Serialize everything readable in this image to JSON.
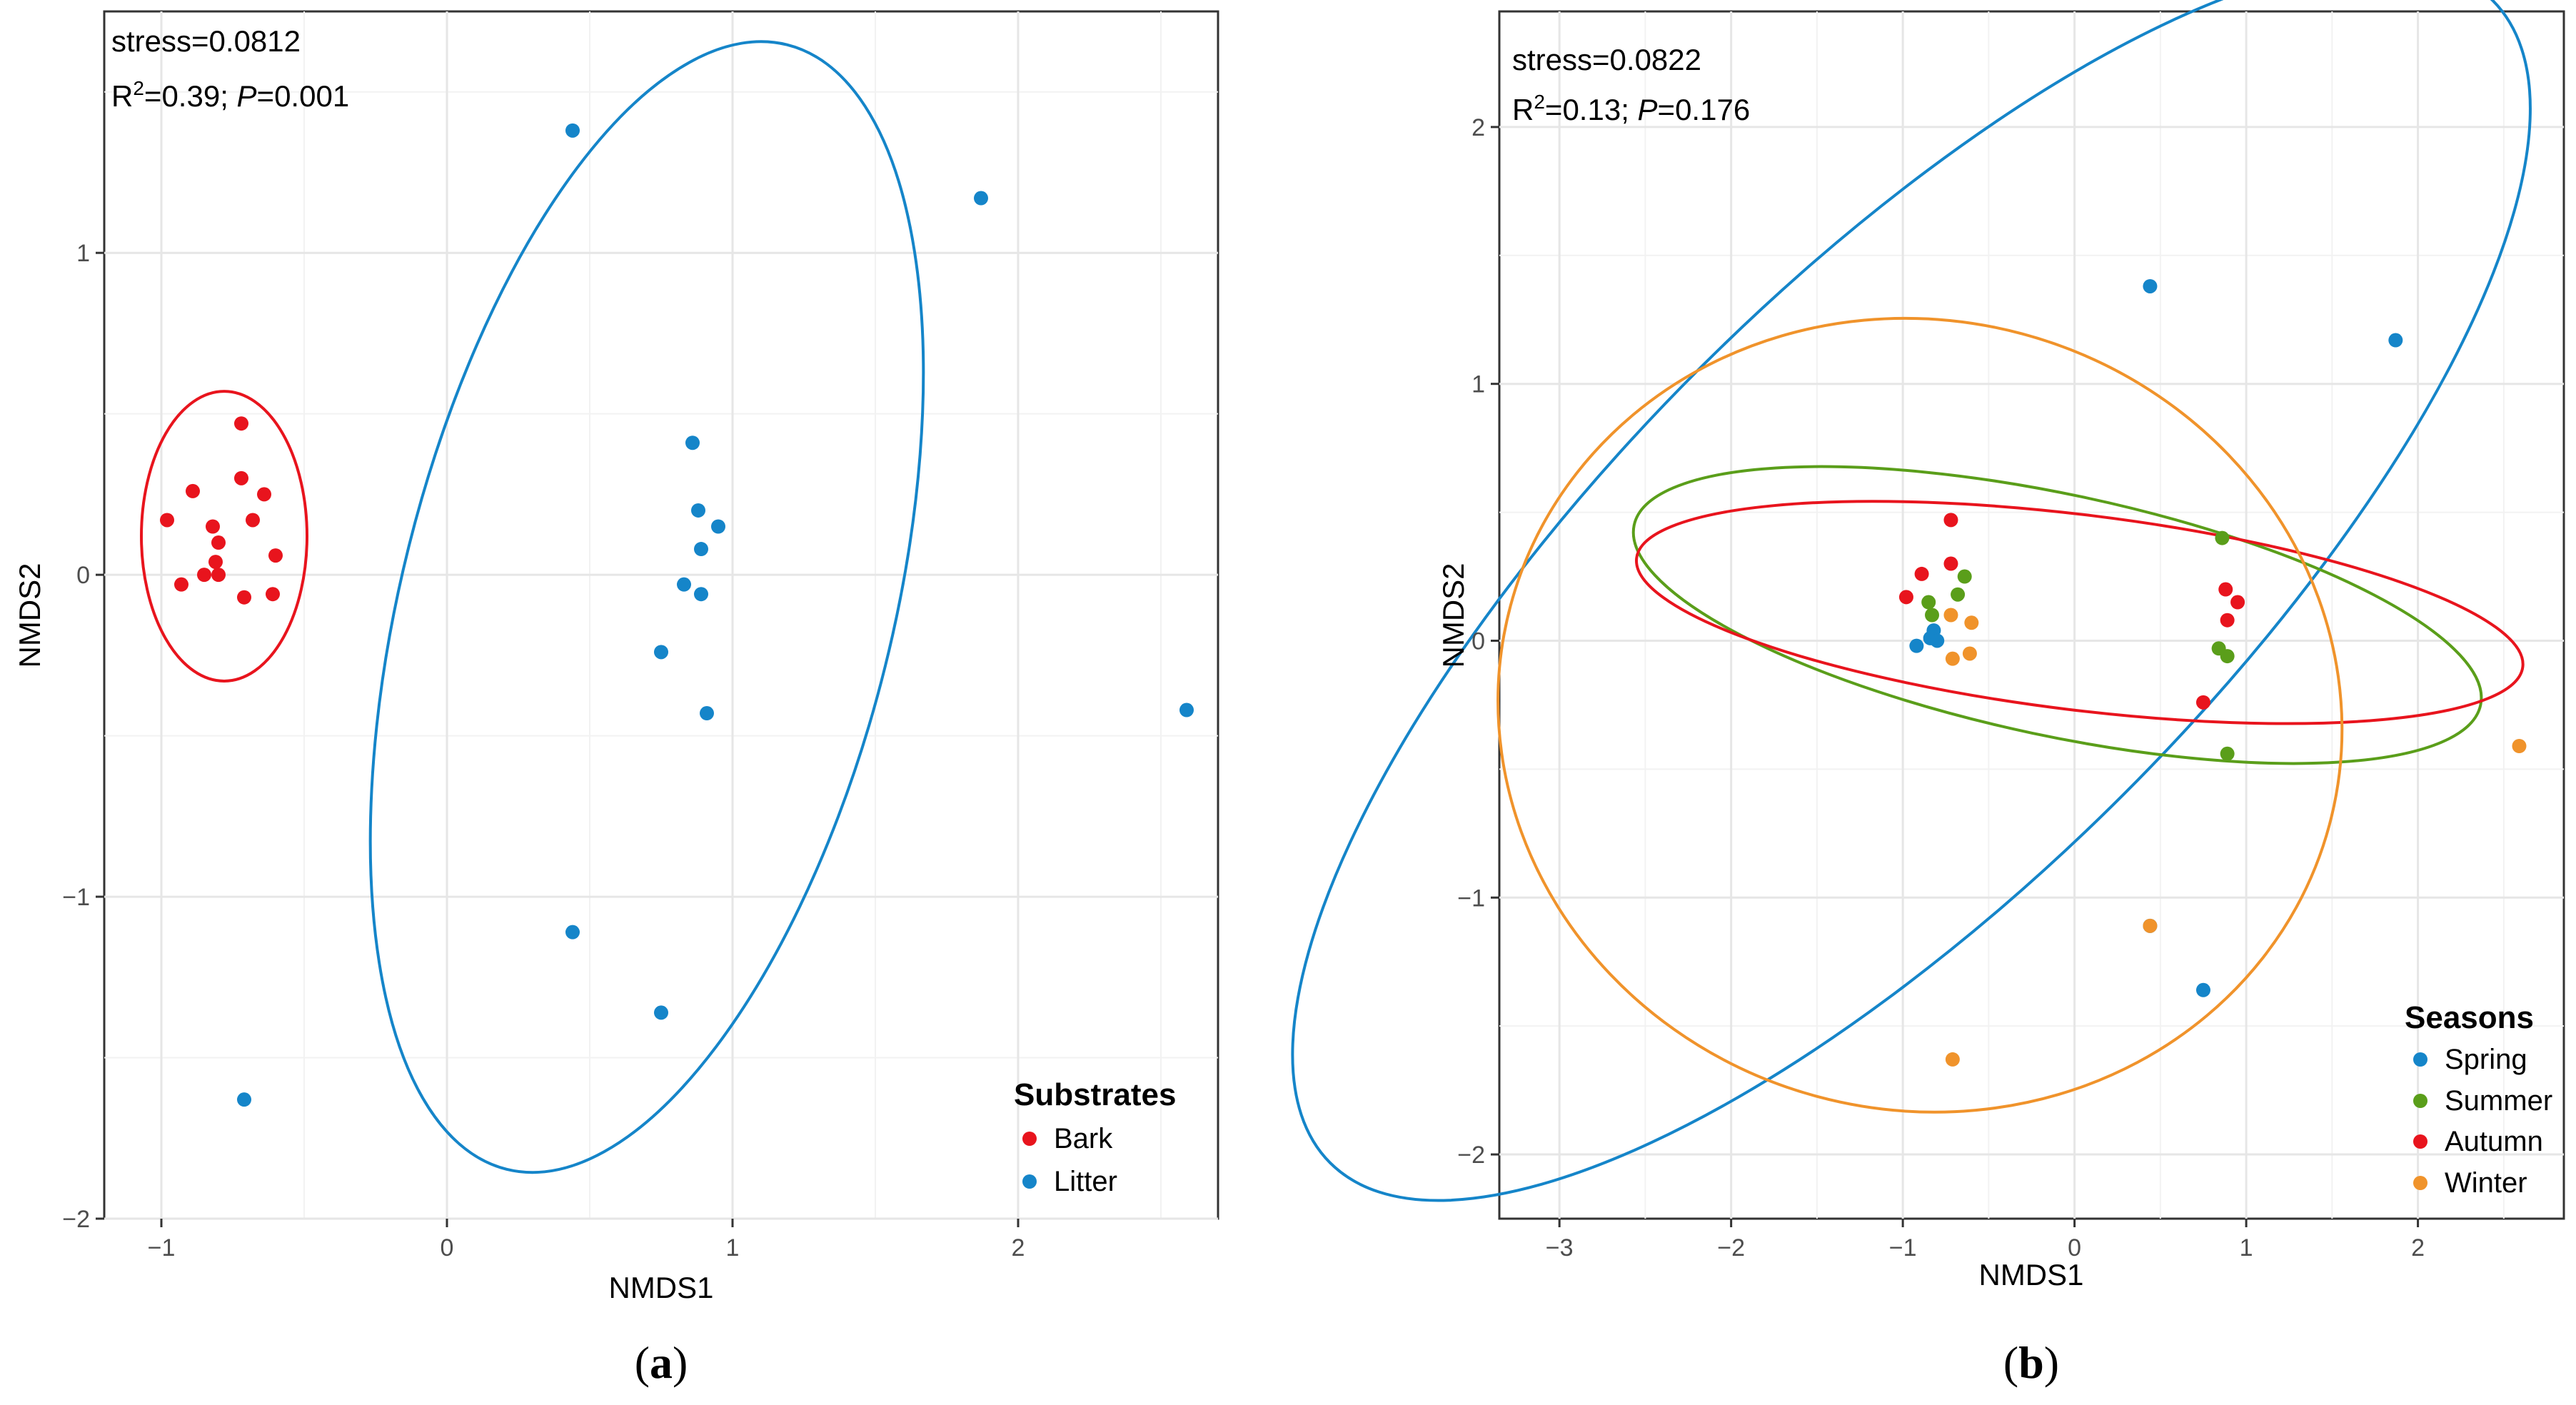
{
  "chart_data": [
    {
      "type": "scatter",
      "panel_label": "a",
      "xlabel": "NMDS1",
      "ylabel": "NMDS2",
      "xlim": [
        -1.2,
        2.7
      ],
      "ylim": [
        -2.0,
        1.75
      ],
      "xticks": [
        -1,
        0,
        1,
        2
      ],
      "yticks": [
        -2,
        -1,
        0,
        1
      ],
      "xtick_labels": [
        "−1",
        "0",
        "1",
        "2"
      ],
      "ytick_labels": [
        "−2",
        "−1",
        "0",
        "1"
      ],
      "stats": {
        "stress": "stress=0.0812",
        "r2_prefix": "R",
        "r2_sup": "2",
        "r2_value": "=0.39; ",
        "p_label": "P",
        "p_value": "=0.001"
      },
      "legend": {
        "title": "Substrates",
        "position": "bottom-right"
      },
      "series": [
        {
          "name": "Bark",
          "color": "#e8141d",
          "points": [
            [
              -0.72,
              0.47
            ],
            [
              -0.89,
              0.26
            ],
            [
              -0.72,
              0.3
            ],
            [
              -0.64,
              0.25
            ],
            [
              -0.98,
              0.17
            ],
            [
              -0.82,
              0.15
            ],
            [
              -0.68,
              0.17
            ],
            [
              -0.8,
              0.1
            ],
            [
              -0.6,
              0.06
            ],
            [
              -0.81,
              0.04
            ],
            [
              -0.85,
              0.0
            ],
            [
              -0.8,
              0.0
            ],
            [
              -0.93,
              -0.03
            ],
            [
              -0.71,
              -0.07
            ],
            [
              -0.61,
              -0.06
            ]
          ],
          "ellipse": {
            "cx": -0.78,
            "cy": 0.12,
            "rx": 0.29,
            "ry": 0.45,
            "angle": 0
          }
        },
        {
          "name": "Litter",
          "color": "#1585c9",
          "points": [
            [
              0.44,
              1.38
            ],
            [
              1.87,
              1.17
            ],
            [
              0.86,
              0.41
            ],
            [
              0.88,
              0.2
            ],
            [
              0.95,
              0.15
            ],
            [
              0.89,
              0.08
            ],
            [
              0.83,
              -0.03
            ],
            [
              0.89,
              -0.06
            ],
            [
              0.75,
              -0.24
            ],
            [
              0.91,
              -0.43
            ],
            [
              2.59,
              -0.42
            ],
            [
              0.44,
              -1.11
            ],
            [
              0.75,
              -1.36
            ],
            [
              -0.71,
              -1.63
            ]
          ],
          "ellipse": {
            "cx": 0.7,
            "cy": -0.1,
            "rx": 0.86,
            "ry": 1.8,
            "angle": 14
          }
        }
      ]
    },
    {
      "type": "scatter",
      "panel_label": "b",
      "xlabel": "NMDS1",
      "ylabel": "NMDS2",
      "xlim": [
        -3.35,
        2.85
      ],
      "ylim": [
        -2.25,
        2.45
      ],
      "xticks": [
        -3,
        -2,
        -1,
        0,
        1,
        2
      ],
      "yticks": [
        -2,
        -1,
        0,
        1,
        2
      ],
      "xtick_labels": [
        "−3",
        "−2",
        "−1",
        "0",
        "1",
        "2"
      ],
      "ytick_labels": [
        "−2",
        "−1",
        "0",
        "1",
        "2"
      ],
      "stats": {
        "stress": "stress=0.0822",
        "r2_prefix": "R",
        "r2_sup": "2",
        "r2_value": "=0.13; ",
        "p_label": "P",
        "p_value": "=0.176"
      },
      "legend": {
        "title": "Seasons",
        "position": "bottom-right"
      },
      "series": [
        {
          "name": "Spring",
          "color": "#1585c9",
          "points": [
            [
              0.44,
              1.38
            ],
            [
              1.87,
              1.17
            ],
            [
              -0.92,
              -0.02
            ],
            [
              -0.84,
              0.01
            ],
            [
              -0.82,
              0.04
            ],
            [
              -0.8,
              0.0
            ],
            [
              0.44,
              -1.11
            ],
            [
              0.75,
              -1.36
            ]
          ],
          "ellipse": {
            "cx": -0.95,
            "cy": 0.23,
            "rx": 1.75,
            "ry": 3.2,
            "angle": 45
          }
        },
        {
          "name": "Summer",
          "color": "#5a9e1a",
          "points": [
            [
              -0.85,
              0.15
            ],
            [
              -0.83,
              0.1
            ],
            [
              -0.68,
              0.18
            ],
            [
              -0.64,
              0.25
            ],
            [
              0.86,
              0.4
            ],
            [
              0.84,
              -0.03
            ],
            [
              0.89,
              -0.06
            ],
            [
              0.89,
              -0.44
            ]
          ],
          "ellipse": {
            "cx": -0.1,
            "cy": 0.1,
            "rx": 2.52,
            "ry": 0.47,
            "angle": 12
          }
        },
        {
          "name": "Autumn",
          "color": "#e8141d",
          "points": [
            [
              -0.72,
              0.47
            ],
            [
              -0.98,
              0.17
            ],
            [
              -0.89,
              0.26
            ],
            [
              -0.72,
              0.3
            ],
            [
              0.88,
              0.2
            ],
            [
              0.95,
              0.15
            ],
            [
              0.89,
              0.08
            ],
            [
              0.75,
              -0.24
            ]
          ],
          "ellipse": {
            "cx": 0.03,
            "cy": 0.11,
            "rx": 2.6,
            "ry": 0.38,
            "angle": 7
          }
        },
        {
          "name": "Winter",
          "color": "#f0932b",
          "points": [
            [
              -0.72,
              0.1
            ],
            [
              -0.6,
              0.07
            ],
            [
              -0.71,
              -0.07
            ],
            [
              -0.61,
              -0.05
            ],
            [
              2.59,
              -0.41
            ],
            [
              0.44,
              -1.11
            ],
            [
              -0.71,
              -1.63
            ]
          ],
          "ellipse": {
            "cx": -0.9,
            "cy": -0.29,
            "rx": 2.3,
            "ry": 1.65,
            "angle": -75
          }
        }
      ]
    }
  ]
}
